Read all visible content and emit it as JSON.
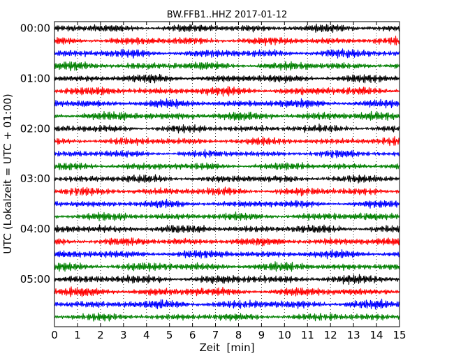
{
  "chart_data": {
    "type": "line",
    "title": "BW.FFB1..HHZ 2017-01-12",
    "xlabel": "Zeit  [min]",
    "ylabel": "UTC (Lokalzeit = UTC + 01:00)",
    "xlim": [
      0,
      15
    ],
    "x_ticks": [
      "0",
      "1",
      "2",
      "3",
      "4",
      "5",
      "6",
      "7",
      "8",
      "9",
      "10",
      "11",
      "12",
      "13",
      "14",
      "15"
    ],
    "y_tick_labels": [
      "00:00",
      "01:00",
      "02:00",
      "03:00",
      "04:00",
      "05:00"
    ],
    "grid": "vertical dotted lines at each minute",
    "trace_interval_minutes": 15,
    "trace_count": 24,
    "trace_colors": [
      "#000000",
      "#ff0000",
      "#0000ff",
      "#008000"
    ],
    "series": [
      {
        "start": "00:00",
        "color": "#000000"
      },
      {
        "start": "00:15",
        "color": "#ff0000"
      },
      {
        "start": "00:30",
        "color": "#0000ff"
      },
      {
        "start": "00:45",
        "color": "#008000"
      },
      {
        "start": "01:00",
        "color": "#000000"
      },
      {
        "start": "01:15",
        "color": "#ff0000"
      },
      {
        "start": "01:30",
        "color": "#0000ff"
      },
      {
        "start": "01:45",
        "color": "#008000"
      },
      {
        "start": "02:00",
        "color": "#000000"
      },
      {
        "start": "02:15",
        "color": "#ff0000"
      },
      {
        "start": "02:30",
        "color": "#0000ff"
      },
      {
        "start": "02:45",
        "color": "#008000"
      },
      {
        "start": "03:00",
        "color": "#000000"
      },
      {
        "start": "03:15",
        "color": "#ff0000"
      },
      {
        "start": "03:30",
        "color": "#0000ff"
      },
      {
        "start": "03:45",
        "color": "#008000"
      },
      {
        "start": "04:00",
        "color": "#000000"
      },
      {
        "start": "04:15",
        "color": "#ff0000"
      },
      {
        "start": "04:30",
        "color": "#0000ff"
      },
      {
        "start": "04:45",
        "color": "#008000"
      },
      {
        "start": "05:00",
        "color": "#000000"
      },
      {
        "start": "05:15",
        "color": "#ff0000"
      },
      {
        "start": "05:30",
        "color": "#0000ff"
      },
      {
        "start": "05:45",
        "color": "#008000"
      }
    ]
  }
}
